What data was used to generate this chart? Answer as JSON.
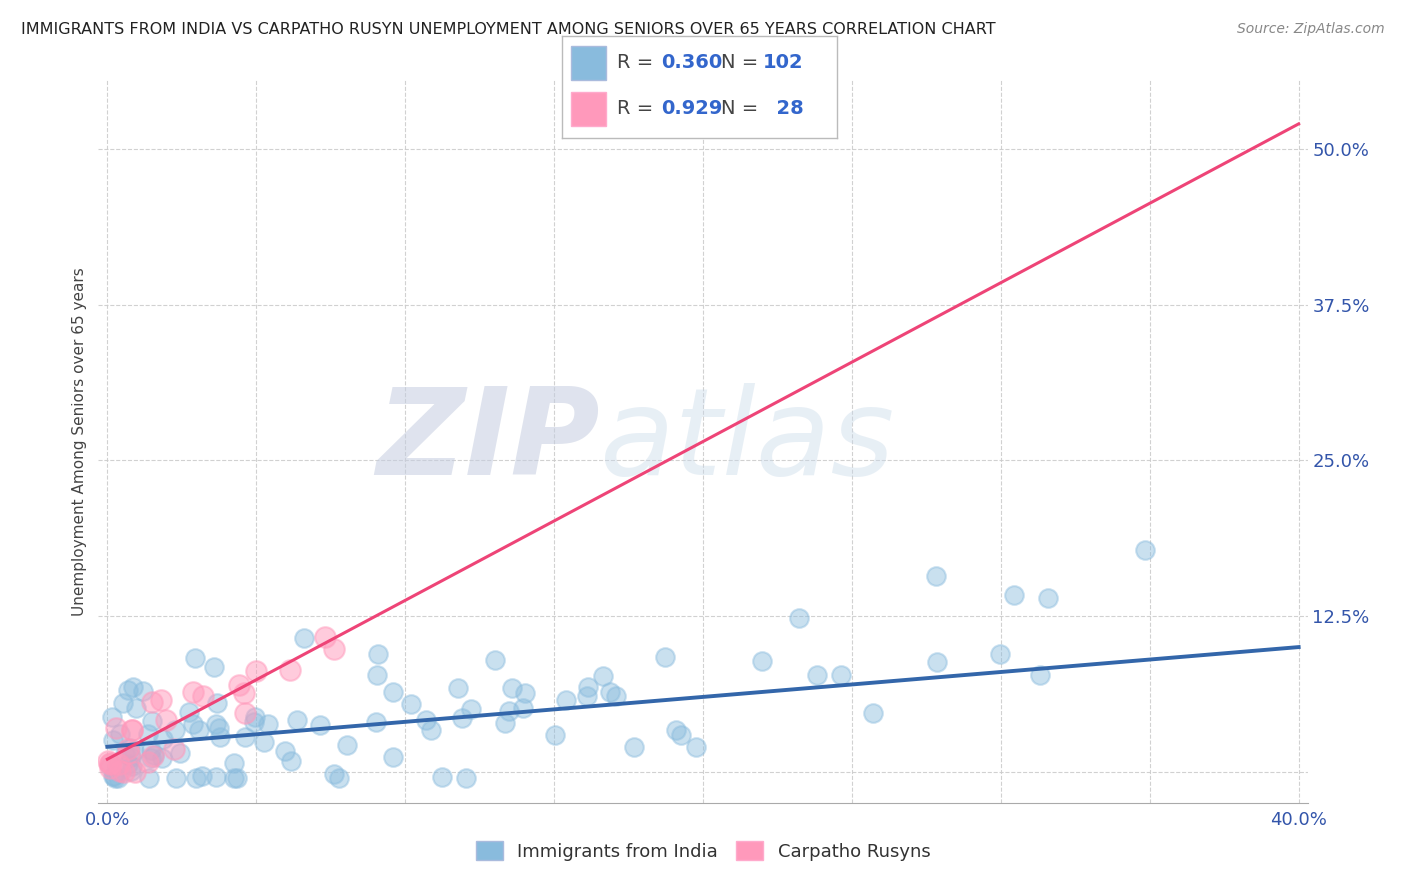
{
  "title": "IMMIGRANTS FROM INDIA VS CARPATHO RUSYN UNEMPLOYMENT AMONG SENIORS OVER 65 YEARS CORRELATION CHART",
  "source": "Source: ZipAtlas.com",
  "ylabel": "Unemployment Among Seniors over 65 years",
  "legend_label_1": "Immigrants from India",
  "legend_label_2": "Carpatho Rusyns",
  "R1": 0.36,
  "N1": 102,
  "R2": 0.929,
  "N2": 28,
  "color1": "#89BBDD",
  "color2": "#FF99BB",
  "line_color1": "#3366AA",
  "line_color2": "#EE4477",
  "xlim": [
    -0.003,
    0.403
  ],
  "ylim": [
    -0.025,
    0.555
  ],
  "xticks": [
    0.0,
    0.05,
    0.1,
    0.15,
    0.2,
    0.25,
    0.3,
    0.35,
    0.4
  ],
  "yticks_right": [
    0.0,
    0.125,
    0.25,
    0.375,
    0.5
  ],
  "yticklabels_right": [
    "",
    "12.5%",
    "25.0%",
    "37.5%",
    "50.0%"
  ],
  "grid_color": "#CCCCCC",
  "watermark_zip": "ZIP",
  "watermark_atlas": "atlas",
  "background": "#FFFFFF",
  "blue_trend_x0": 0.0,
  "blue_trend_y0": 0.02,
  "blue_trend_x1": 0.4,
  "blue_trend_y1": 0.1,
  "pink_trend_x0": 0.0,
  "pink_trend_y0": 0.01,
  "pink_trend_x1": 0.4,
  "pink_trend_y1": 0.52
}
